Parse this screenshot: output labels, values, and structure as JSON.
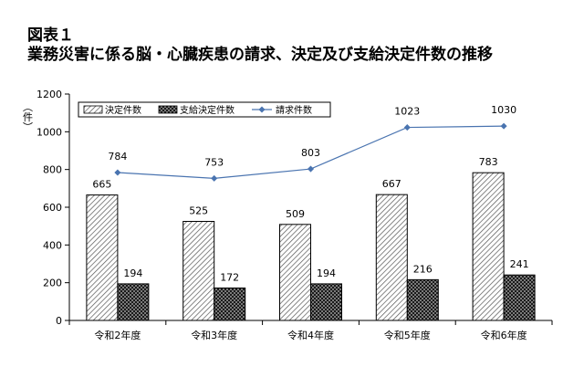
{
  "figure": {
    "label": "図表１",
    "title": "業務災害に係る脳・心臓疾患の請求、決定及び支給決定件数の推移"
  },
  "chart_data": {
    "type": "bar",
    "categories": [
      "令和2年度",
      "令和3年度",
      "令和4年度",
      "令和5年度",
      "令和6年度"
    ],
    "series": [
      {
        "name": "決定件数",
        "kind": "bar",
        "pattern": "diagonal-hatch",
        "values": [
          665,
          525,
          509,
          667,
          783
        ]
      },
      {
        "name": "支給決定件数",
        "kind": "bar",
        "pattern": "dark-check",
        "values": [
          194,
          172,
          194,
          216,
          241
        ]
      },
      {
        "name": "請求件数",
        "kind": "line",
        "color": "#4A74B0",
        "values": [
          784,
          753,
          803,
          1023,
          1030
        ]
      }
    ],
    "ylabel": "（件）",
    "ylim": [
      0,
      1200
    ],
    "yticks": [
      0,
      200,
      400,
      600,
      800,
      1000,
      1200
    ],
    "grid": false,
    "legend": "top-left"
  }
}
